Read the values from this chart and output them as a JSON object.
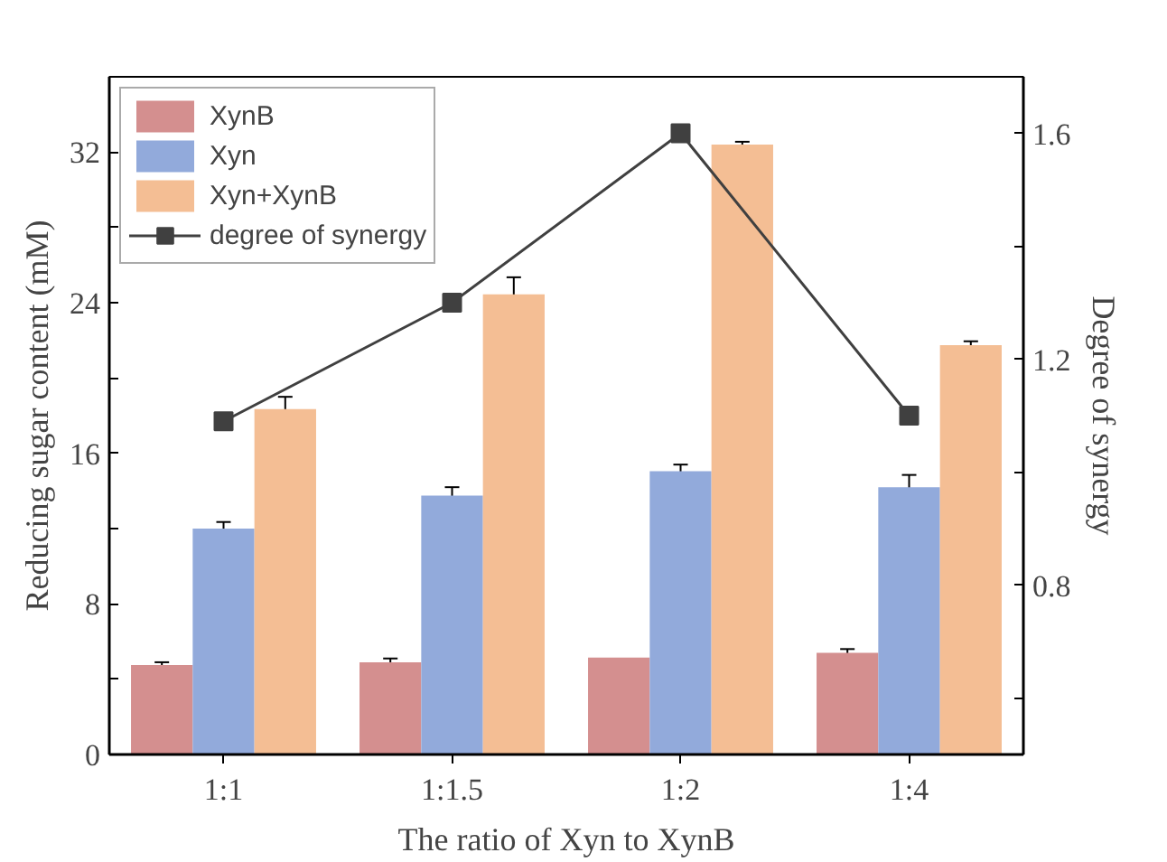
{
  "chart_data": {
    "type": "bar",
    "xlabel": "The ratio of Xyn to XynB",
    "ylabel": "Reducing sugar content (mM)",
    "y2label": "Degree of synergy",
    "categories": [
      "1:1",
      "1:1.5",
      "1:2",
      "1:4"
    ],
    "series": [
      {
        "name": "XynB",
        "color": "#d48f8f",
        "values": [
          4.75,
          4.9,
          5.15,
          5.4
        ],
        "errors": [
          0.15,
          0.2,
          null,
          0.2
        ]
      },
      {
        "name": "Xyn",
        "color": "#92aadb",
        "values": [
          12.0,
          13.75,
          15.05,
          14.2
        ],
        "errors": [
          0.35,
          0.45,
          0.35,
          0.65
        ]
      },
      {
        "name": "Xyn+XynB",
        "color": "#f4be94",
        "values": [
          18.35,
          24.45,
          32.4,
          21.75
        ],
        "errors": [
          0.65,
          0.9,
          0.15,
          0.2
        ]
      },
      {
        "name": "degree of synergy",
        "type": "line",
        "axis": "y2",
        "color": "#404040",
        "marker": "square",
        "values": [
          1.09,
          1.3,
          1.6,
          1.1
        ]
      }
    ],
    "ylim": [
      0,
      36
    ],
    "yticks": [
      0,
      {
        "value": 4,
        "label": null
      },
      8,
      {
        "value": 12,
        "label": null
      },
      16,
      {
        "value": 20,
        "label": null
      },
      24,
      {
        "value": 28,
        "label": null
      },
      32
    ],
    "y2lim": [
      0.5,
      1.7
    ],
    "y2ticks": [
      {
        "value": 0.6,
        "label": null
      },
      0.8,
      {
        "value": 1.0,
        "label": null
      },
      1.2,
      {
        "value": 1.4,
        "label": null
      },
      1.6
    ],
    "grid": false,
    "legend": "top left"
  }
}
